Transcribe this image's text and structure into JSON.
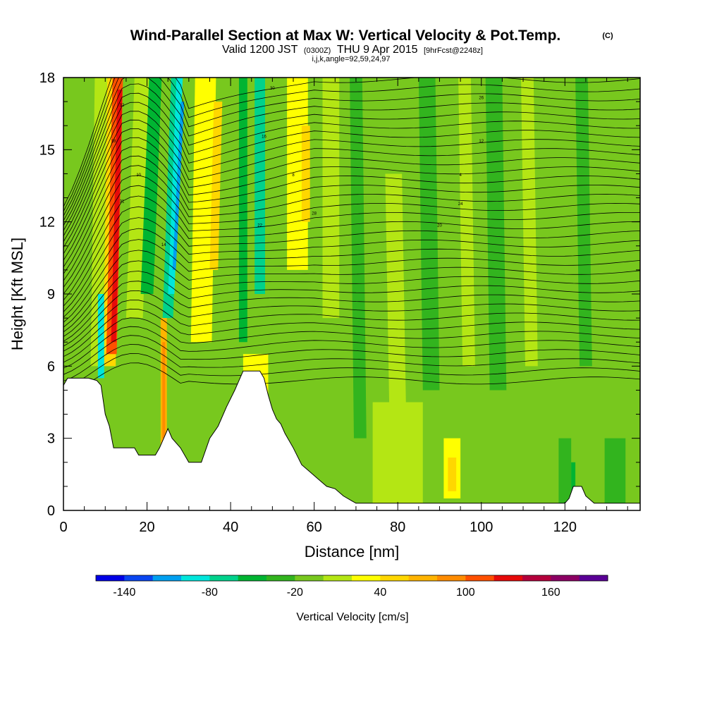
{
  "chart_data": {
    "type": "heatmap",
    "title": "Wind-Parallel Section at Max W: Vertical Velocity & Pot.Temp.",
    "title_mark": "(C)",
    "subtitle_valid": "Valid 1200 JST",
    "subtitle_utc": "(0300Z)",
    "subtitle_date": "THU 9 Apr 2015",
    "subtitle_fcst": "[9hrFcst@2248z]",
    "subtitle_indices": "i,j,k,angle=92,59,24,97",
    "xlabel": "Distance [nm]",
    "ylabel": "Height [Kft MSL]",
    "xlim": [
      0,
      138
    ],
    "ylim": [
      0,
      18
    ],
    "x_ticks": [
      "0",
      "20",
      "40",
      "60",
      "80",
      "100",
      "120"
    ],
    "y_ticks": [
      "0",
      "3",
      "6",
      "9",
      "12",
      "15",
      "18"
    ],
    "colorbar_label": "Vertical Velocity [cm/s]",
    "colorbar_ticks": [
      "-140",
      "-80",
      "-20",
      "40",
      "100",
      "160"
    ],
    "colorbar_colors": [
      "#0000e6",
      "#0a46f0",
      "#00a0f0",
      "#00e6dc",
      "#00d28c",
      "#00b432",
      "#32b41e",
      "#78c81e",
      "#b4e614",
      "#ffff00",
      "#ffd700",
      "#ffb400",
      "#ff8c00",
      "#ff5000",
      "#e60a0a",
      "#b4003c",
      "#8c0064",
      "#5a0096"
    ],
    "terrain_kft": [
      [
        0,
        5.2
      ],
      [
        1,
        5.5
      ],
      [
        6,
        5.5
      ],
      [
        8,
        5.4
      ],
      [
        9,
        5.2
      ],
      [
        10,
        4.0
      ],
      [
        11,
        3.5
      ],
      [
        12,
        2.6
      ],
      [
        17,
        2.6
      ],
      [
        18,
        2.3
      ],
      [
        22,
        2.3
      ],
      [
        23,
        2.6
      ],
      [
        25,
        3.4
      ],
      [
        26,
        3.0
      ],
      [
        28,
        2.6
      ],
      [
        30,
        2.0
      ],
      [
        33,
        2.0
      ],
      [
        35,
        3.0
      ],
      [
        37,
        3.5
      ],
      [
        39,
        4.3
      ],
      [
        41,
        5.0
      ],
      [
        43,
        5.8
      ],
      [
        47,
        5.8
      ],
      [
        48,
        5.5
      ],
      [
        49,
        4.8
      ],
      [
        50,
        4.2
      ],
      [
        51,
        3.8
      ],
      [
        52,
        3.6
      ],
      [
        53,
        3.2
      ],
      [
        55,
        2.6
      ],
      [
        57,
        1.9
      ],
      [
        59,
        1.6
      ],
      [
        61,
        1.3
      ],
      [
        63,
        1.0
      ],
      [
        65,
        0.9
      ],
      [
        67,
        0.6
      ],
      [
        69,
        0.4
      ],
      [
        70,
        0.3
      ],
      [
        120,
        0.3
      ],
      [
        121,
        0.5
      ],
      [
        122,
        1.0
      ],
      [
        124,
        1.0
      ],
      [
        125,
        0.6
      ],
      [
        127,
        0.3
      ],
      [
        138,
        0.3
      ]
    ],
    "theta_contour_labels": [
      "32",
      "30",
      "26",
      "18",
      "16",
      "12",
      "10",
      "8",
      "4",
      "31",
      "28",
      "24",
      "22",
      "20",
      "14"
    ]
  }
}
